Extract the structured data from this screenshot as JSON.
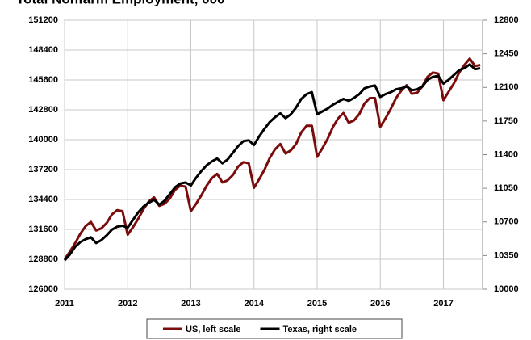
{
  "chart_data": {
    "type": "line",
    "title": "Total Nonfarm Employment, 000",
    "x": [
      2011.0,
      2011.083,
      2011.167,
      2011.25,
      2011.333,
      2011.417,
      2011.5,
      2011.583,
      2011.667,
      2011.75,
      2011.833,
      2011.917,
      2012.0,
      2012.083,
      2012.167,
      2012.25,
      2012.333,
      2012.417,
      2012.5,
      2012.583,
      2012.667,
      2012.75,
      2012.833,
      2012.917,
      2013.0,
      2013.083,
      2013.167,
      2013.25,
      2013.333,
      2013.417,
      2013.5,
      2013.583,
      2013.667,
      2013.75,
      2013.833,
      2013.917,
      2014.0,
      2014.083,
      2014.167,
      2014.25,
      2014.333,
      2014.417,
      2014.5,
      2014.583,
      2014.667,
      2014.75,
      2014.833,
      2014.917,
      2015.0,
      2015.083,
      2015.167,
      2015.25,
      2015.333,
      2015.417,
      2015.5,
      2015.583,
      2015.667,
      2015.75,
      2015.833,
      2015.917,
      2016.0,
      2016.083,
      2016.167,
      2016.25,
      2016.333,
      2016.417,
      2016.5,
      2016.583,
      2016.667,
      2016.75,
      2016.833,
      2016.917,
      2017.0,
      2017.083,
      2017.167,
      2017.25,
      2017.333,
      2017.417,
      2017.5,
      2017.583
    ],
    "series": [
      {
        "name": "US, left scale",
        "color": "#7b0c0c",
        "axis": "y",
        "values": [
          128800,
          129500,
          130300,
          131200,
          131900,
          132300,
          131500,
          131700,
          132200,
          133000,
          133400,
          133300,
          131100,
          131800,
          132600,
          133500,
          134200,
          134600,
          133800,
          134000,
          134500,
          135300,
          135700,
          135600,
          133300,
          134000,
          134800,
          135700,
          136400,
          136800,
          136000,
          136200,
          136700,
          137500,
          137900,
          137800,
          135500,
          136300,
          137200,
          138300,
          139100,
          139600,
          138700,
          139000,
          139600,
          140700,
          141300,
          141300,
          138400,
          139200,
          140100,
          141200,
          142000,
          142500,
          141600,
          141800,
          142400,
          143400,
          143900,
          143900,
          141200,
          142000,
          142900,
          143900,
          144600,
          145100,
          144300,
          144400,
          145000,
          145900,
          146300,
          146200,
          143700,
          144500,
          145300,
          146300,
          147000,
          147600,
          146900,
          147000
        ]
      },
      {
        "name": "Texas, right scale",
        "color": "#000000",
        "axis": "y2",
        "values": [
          10300,
          10360,
          10440,
          10490,
          10520,
          10540,
          10480,
          10510,
          10560,
          10620,
          10650,
          10660,
          10640,
          10720,
          10800,
          10860,
          10900,
          10930,
          10880,
          10920,
          10990,
          11060,
          11100,
          11110,
          11080,
          11160,
          11230,
          11290,
          11330,
          11360,
          11310,
          11350,
          11420,
          11490,
          11540,
          11550,
          11500,
          11590,
          11670,
          11740,
          11790,
          11830,
          11780,
          11820,
          11890,
          11980,
          12030,
          12050,
          11820,
          11850,
          11880,
          11920,
          11950,
          11980,
          11960,
          11990,
          12030,
          12090,
          12110,
          12120,
          12000,
          12030,
          12050,
          12080,
          12090,
          12110,
          12070,
          12080,
          12110,
          12180,
          12210,
          12220,
          12140,
          12180,
          12230,
          12280,
          12300,
          12340,
          12290,
          12300
        ]
      }
    ],
    "xlim": [
      2011,
      2017.62
    ],
    "xticks": [
      2011,
      2012,
      2013,
      2014,
      2015,
      2016,
      2017
    ],
    "ylim": [
      126000,
      151200
    ],
    "yticks": [
      126000,
      128800,
      131600,
      134400,
      137200,
      140000,
      142800,
      145600,
      148400,
      151200
    ],
    "y2lim": [
      10000,
      12800
    ],
    "y2ticks": [
      10000,
      10350,
      10700,
      11050,
      11400,
      11750,
      12100,
      12450,
      12800
    ],
    "grid": true,
    "legend": "bottom"
  }
}
